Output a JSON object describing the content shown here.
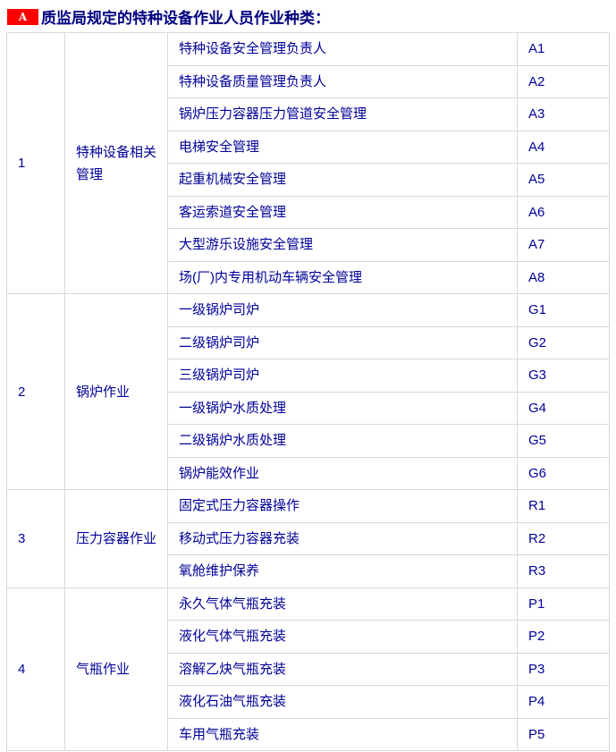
{
  "colors": {
    "badge_bg": "#ff0000",
    "badge_text": "#ffffff",
    "title_text": "#000080",
    "cell_text": "#000099",
    "table_border": "#d8d8d8",
    "page_bg": "#ffffff"
  },
  "header": {
    "badge_label": "A",
    "title": "质监局规定的特种设备作业人员作业种类："
  },
  "table": {
    "groups": [
      {
        "no": "1",
        "category": "特种设备相关管理",
        "items": [
          {
            "name": "特种设备安全管理负责人",
            "code": "A1"
          },
          {
            "name": "特种设备质量管理负责人",
            "code": "A2"
          },
          {
            "name": "锅炉压力容器压力管道安全管理",
            "code": "A3"
          },
          {
            "name": "电梯安全管理",
            "code": "A4"
          },
          {
            "name": "起重机械安全管理",
            "code": "A5"
          },
          {
            "name": "客运索道安全管理",
            "code": "A6"
          },
          {
            "name": "大型游乐设施安全管理",
            "code": "A7"
          },
          {
            "name": "场(厂)内专用机动车辆安全管理",
            "code": "A8"
          }
        ]
      },
      {
        "no": "2",
        "category": "锅炉作业",
        "items": [
          {
            "name": "一级锅炉司炉",
            "code": "G1"
          },
          {
            "name": "二级锅炉司炉",
            "code": "G2"
          },
          {
            "name": "三级锅炉司炉",
            "code": "G3"
          },
          {
            "name": "一级锅炉水质处理",
            "code": "G4"
          },
          {
            "name": "二级锅炉水质处理",
            "code": "G5"
          },
          {
            "name": "锅炉能效作业",
            "code": "G6"
          }
        ]
      },
      {
        "no": "3",
        "category": "压力容器作业",
        "items": [
          {
            "name": "固定式压力容器操作",
            "code": "R1"
          },
          {
            "name": "移动式压力容器充装",
            "code": "R2"
          },
          {
            "name": "氧舱维护保养",
            "code": "R3"
          }
        ]
      },
      {
        "no": "4",
        "category": "气瓶作业",
        "items": [
          {
            "name": "永久气体气瓶充装",
            "code": "P1"
          },
          {
            "name": "液化气体气瓶充装",
            "code": "P2"
          },
          {
            "name": "溶解乙炔气瓶充装",
            "code": "P3"
          },
          {
            "name": "液化石油气瓶充装",
            "code": "P4"
          },
          {
            "name": "车用气瓶充装",
            "code": "P5"
          }
        ]
      }
    ]
  }
}
